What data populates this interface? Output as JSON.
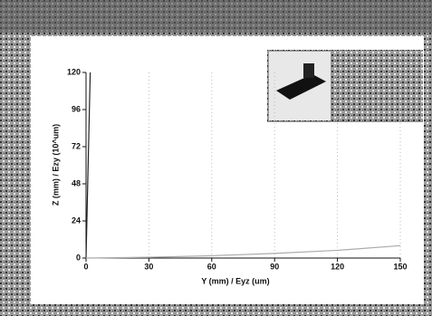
{
  "chart_data": {
    "type": "line",
    "x_label": "Y (mm) / Eyz (um)",
    "y_label": "Z (mm) / Ezy (10^um)",
    "xlim": [
      0,
      150
    ],
    "xticks": [
      0,
      30,
      60,
      90,
      120,
      150
    ],
    "ylim": [
      0,
      120
    ],
    "yticks": [
      0,
      24,
      48,
      72,
      96,
      120
    ],
    "grid": true,
    "series": [
      {
        "color": "#222222",
        "x": [
          0,
          0.5,
          1,
          1.5,
          2
        ],
        "values": [
          0,
          30,
          60,
          90,
          120
        ]
      },
      {
        "color": "#aaaaaa",
        "x": [
          0,
          30,
          60,
          90,
          120,
          150
        ],
        "values": [
          0,
          0.5,
          1.5,
          3,
          5,
          8
        ]
      }
    ]
  }
}
